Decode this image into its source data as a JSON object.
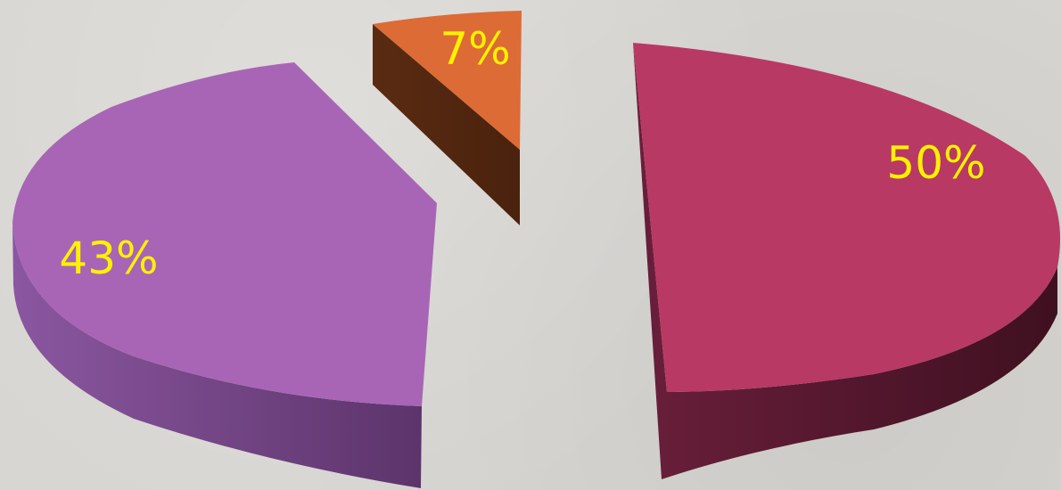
{
  "chart_data": {
    "type": "pie",
    "title": "",
    "slices": [
      {
        "label": "50%",
        "value": 50,
        "top_color": "#b83964",
        "side_color": "#5c1a33"
      },
      {
        "label": "43%",
        "value": 43,
        "top_color": "#a865b6",
        "side_color": "#6e3d7a"
      },
      {
        "label": "7%",
        "value": 7,
        "top_color": "#dd6b35",
        "side_color": "#5a2b12"
      }
    ],
    "label_color": "#fff200",
    "exploded": true,
    "style": "3d"
  }
}
